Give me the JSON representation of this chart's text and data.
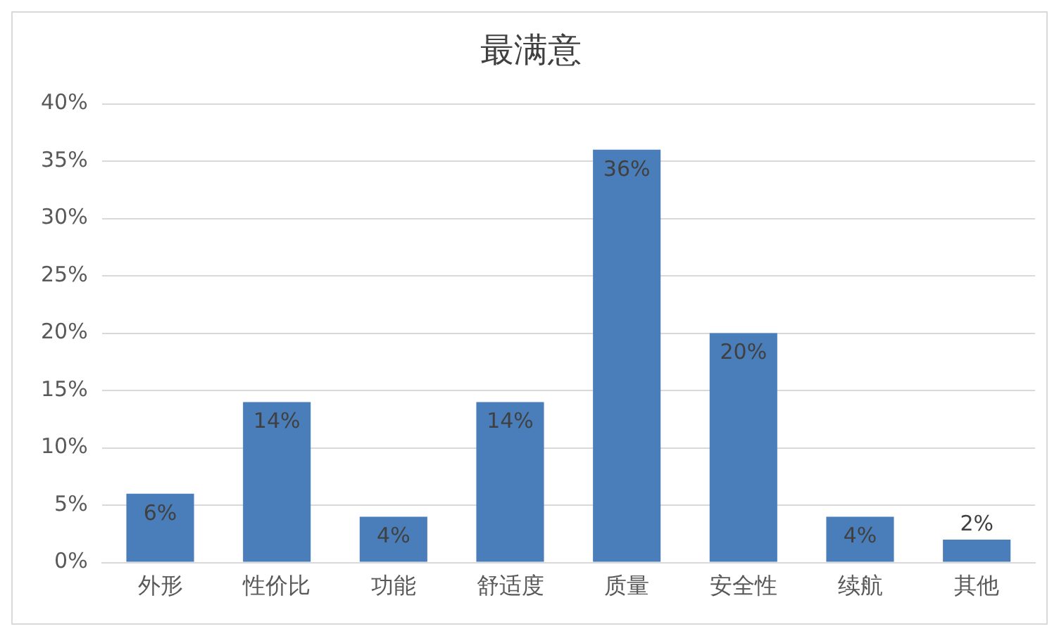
{
  "chart_data": {
    "type": "bar",
    "title": "最满意",
    "categories": [
      "外形",
      "性价比",
      "功能",
      "舒适度",
      "质量",
      "安全性",
      "续航",
      "其他"
    ],
    "values": [
      6,
      14,
      4,
      14,
      36,
      20,
      4,
      2
    ],
    "value_labels": [
      "6%",
      "14%",
      "4%",
      "14%",
      "36%",
      "20%",
      "4%",
      "2%"
    ],
    "color": "#4a7ebb",
    "ylim": [
      0,
      40
    ],
    "yticks": [
      {
        "value": 0,
        "label": "0%"
      },
      {
        "value": 5,
        "label": "5%"
      },
      {
        "value": 10,
        "label": "10%"
      },
      {
        "value": 15,
        "label": "15%"
      },
      {
        "value": 20,
        "label": "20%"
      },
      {
        "value": 25,
        "label": "25%"
      },
      {
        "value": 30,
        "label": "30%"
      },
      {
        "value": 35,
        "label": "35%"
      },
      {
        "value": 40,
        "label": "40%"
      }
    ],
    "grid": "y",
    "legend": false
  }
}
